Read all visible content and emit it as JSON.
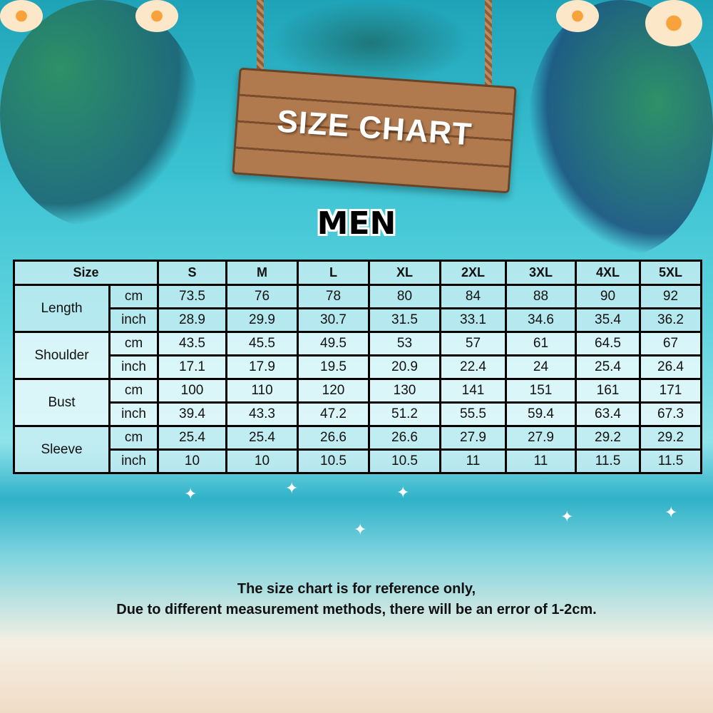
{
  "header": {
    "sign_title": "SIZE CHART",
    "section": "MEN"
  },
  "chart_data": {
    "type": "table",
    "columns": [
      "Size",
      "S",
      "M",
      "L",
      "XL",
      "2XL",
      "3XL",
      "4XL",
      "5XL"
    ],
    "rows": [
      {
        "measure": "Length",
        "unit": "cm",
        "values": [
          "73.5",
          "76",
          "78",
          "80",
          "84",
          "88",
          "90",
          "92"
        ]
      },
      {
        "measure": "Length",
        "unit": "inch",
        "values": [
          "28.9",
          "29.9",
          "30.7",
          "31.5",
          "33.1",
          "34.6",
          "35.4",
          "36.2"
        ]
      },
      {
        "measure": "Shoulder",
        "unit": "cm",
        "values": [
          "43.5",
          "45.5",
          "49.5",
          "53",
          "57",
          "61",
          "64.5",
          "67"
        ]
      },
      {
        "measure": "Shoulder",
        "unit": "inch",
        "values": [
          "17.1",
          "17.9",
          "19.5",
          "20.9",
          "22.4",
          "24",
          "25.4",
          "26.4"
        ]
      },
      {
        "measure": "Bust",
        "unit": "cm",
        "values": [
          "100",
          "110",
          "120",
          "130",
          "141",
          "151",
          "161",
          "171"
        ]
      },
      {
        "measure": "Bust",
        "unit": "inch",
        "values": [
          "39.4",
          "43.3",
          "47.2",
          "51.2",
          "55.5",
          "59.4",
          "63.4",
          "67.3"
        ]
      },
      {
        "measure": "Sleeve",
        "unit": "cm",
        "values": [
          "25.4",
          "25.4",
          "26.6",
          "26.6",
          "27.9",
          "27.9",
          "29.2",
          "29.2"
        ]
      },
      {
        "measure": "Sleeve",
        "unit": "inch",
        "values": [
          "10",
          "10",
          "10.5",
          "10.5",
          "11",
          "11",
          "11.5",
          "11.5"
        ]
      }
    ]
  },
  "footer": {
    "line1": "The size chart is for reference only,",
    "line2": "Due to different measurement methods, there will be an error of 1-2cm."
  },
  "colors": {
    "sky": "#3cc3d3",
    "wood": "#b07a4e",
    "table_cell": "#d2f0f4"
  }
}
